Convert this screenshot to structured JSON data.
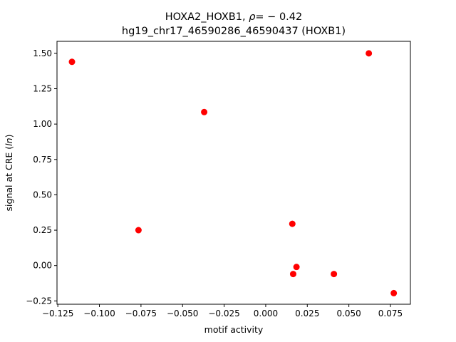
{
  "chart_data": {
    "type": "scatter",
    "title_line1": "HOXA2_HOXB1, ",
    "title_rho": "ρ",
    "title_rho_value": "= − 0.42",
    "title_line2": "hg19_chr17_46590286_46590437 (HOXB1)",
    "xlabel": "motif activity",
    "ylabel_prefix": "signal at CRE (",
    "ylabel_italic": "ln",
    "ylabel_suffix": ")",
    "xlim": [
      -0.1255,
      0.087
    ],
    "ylim": [
      -0.2735,
      1.585
    ],
    "xticks": [
      {
        "value": -0.125,
        "label": "−0.125"
      },
      {
        "value": -0.1,
        "label": "−0.100"
      },
      {
        "value": -0.075,
        "label": "−0.075"
      },
      {
        "value": -0.05,
        "label": "−0.050"
      },
      {
        "value": -0.025,
        "label": "−0.025"
      },
      {
        "value": 0.0,
        "label": "0.000"
      },
      {
        "value": 0.025,
        "label": "0.025"
      },
      {
        "value": 0.05,
        "label": "0.050"
      },
      {
        "value": 0.075,
        "label": "0.075"
      }
    ],
    "yticks": [
      {
        "value": -0.25,
        "label": "−0.25"
      },
      {
        "value": 0.0,
        "label": "0.00"
      },
      {
        "value": 0.25,
        "label": "0.25"
      },
      {
        "value": 0.5,
        "label": "0.50"
      },
      {
        "value": 0.75,
        "label": "0.75"
      },
      {
        "value": 1.0,
        "label": "1.00"
      },
      {
        "value": 1.25,
        "label": "1.25"
      },
      {
        "value": 1.5,
        "label": "1.50"
      }
    ],
    "points": [
      {
        "x": -0.1165,
        "y": 1.44
      },
      {
        "x": -0.0765,
        "y": 0.25
      },
      {
        "x": -0.037,
        "y": 1.085
      },
      {
        "x": 0.016,
        "y": 0.295
      },
      {
        "x": 0.0185,
        "y": -0.01
      },
      {
        "x": 0.0165,
        "y": -0.06
      },
      {
        "x": 0.041,
        "y": -0.06
      },
      {
        "x": 0.062,
        "y": 1.5
      },
      {
        "x": 0.077,
        "y": -0.195
      }
    ],
    "point_color": "#ff0000",
    "grid": false,
    "legend": "none"
  }
}
